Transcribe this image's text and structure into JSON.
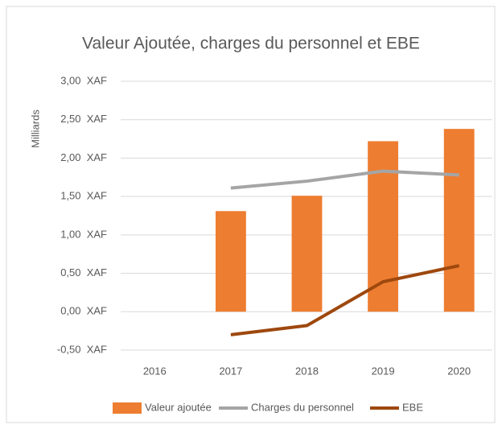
{
  "chart_data": {
    "type": "bar",
    "title": "Valeur Ajoutée, charges du personnel et EBE",
    "y_label": "Milliards",
    "categories": [
      "2016",
      "2017",
      "2018",
      "2019",
      "2020"
    ],
    "series": [
      {
        "name": "Valeur ajoutée",
        "type": "bar",
        "color": "#ed7d31",
        "values": [
          null,
          1.31,
          1.51,
          2.22,
          2.38
        ]
      },
      {
        "name": "Charges du personnel",
        "type": "line",
        "color": "#a5a5a5",
        "values": [
          null,
          1.61,
          1.7,
          1.83,
          1.78
        ]
      },
      {
        "name": "EBE",
        "type": "line",
        "color": "#9e480e",
        "values": [
          null,
          -0.3,
          -0.18,
          0.39,
          0.6
        ]
      }
    ],
    "ylim": [
      -0.5,
      3
    ],
    "yticks": [
      {
        "value": -0.5,
        "label": "-0,50  XAF"
      },
      {
        "value": 0,
        "label": "0,00  XAF"
      },
      {
        "value": 0.5,
        "label": "0,50  XAF"
      },
      {
        "value": 1,
        "label": "1,00  XAF"
      },
      {
        "value": 1.5,
        "label": "1,50  XAF"
      },
      {
        "value": 2,
        "label": "2,00  XAF"
      },
      {
        "value": 2.5,
        "label": "2,50  XAF"
      },
      {
        "value": 3,
        "label": "3,00  XAF"
      }
    ],
    "grid": true,
    "legend": "bottom"
  }
}
